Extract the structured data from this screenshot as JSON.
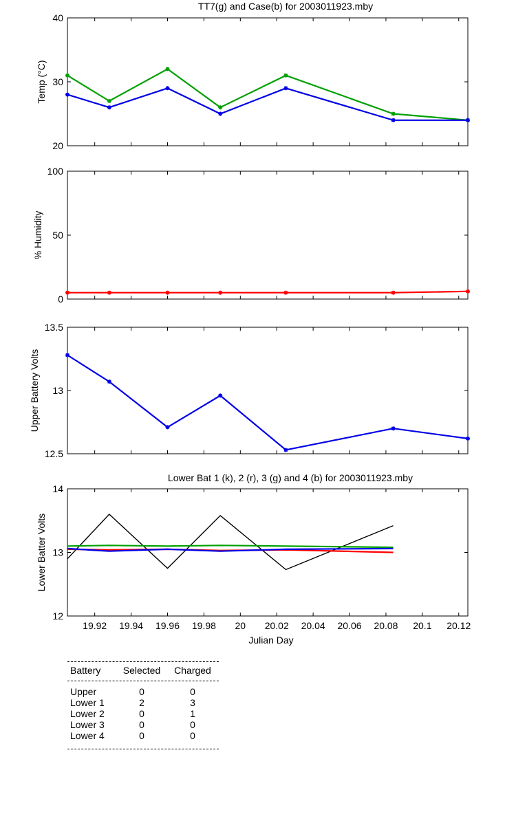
{
  "chart_data": [
    {
      "type": "line",
      "title": "TT7(g) and Case(b) for 2003011923.mby",
      "ylabel": "Temp  (°C)",
      "xlabel": "",
      "xlim": [
        19.905,
        20.125
      ],
      "ylim": [
        20,
        40
      ],
      "yticks": [
        20,
        30,
        40
      ],
      "series": [
        {
          "name": "TT7",
          "color": "#00a000",
          "x": [
            19.905,
            19.928,
            19.96,
            19.989,
            20.025,
            20.084,
            20.125
          ],
          "y": [
            31,
            27,
            32,
            26,
            31,
            25,
            24
          ]
        },
        {
          "name": "Case",
          "color": "#0000e6",
          "x": [
            19.905,
            19.928,
            19.96,
            19.989,
            20.025,
            20.084,
            20.125
          ],
          "y": [
            28,
            26,
            29,
            25,
            29,
            24,
            24
          ]
        }
      ]
    },
    {
      "type": "line",
      "title": "",
      "ylabel": "% Humidity",
      "xlabel": "",
      "xlim": [
        19.905,
        20.125
      ],
      "ylim": [
        0,
        100
      ],
      "yticks": [
        0,
        50,
        100
      ],
      "series": [
        {
          "color": "#ff0000",
          "x": [
            19.905,
            19.928,
            19.96,
            19.989,
            20.025,
            20.084,
            20.125
          ],
          "y": [
            5,
            5,
            5,
            5,
            5,
            5,
            6
          ]
        }
      ]
    },
    {
      "type": "line",
      "title": "",
      "ylabel": "Upper Battery Volts",
      "xlabel": "",
      "xlim": [
        19.905,
        20.125
      ],
      "ylim": [
        12.5,
        13.5
      ],
      "yticks": [
        12.5,
        13,
        13.5
      ],
      "series": [
        {
          "color": "#0000e6",
          "x": [
            19.905,
            19.928,
            19.96,
            19.989,
            20.025,
            20.084,
            20.125
          ],
          "y": [
            13.28,
            13.07,
            12.71,
            12.96,
            12.53,
            12.7,
            12.62
          ]
        }
      ]
    },
    {
      "type": "line",
      "title": "Lower Bat 1 (k), 2 (r), 3 (g) and 4 (b) for 2003011923.mby",
      "ylabel": "Lower Batter Volts",
      "xlabel": "Julian Day",
      "xlim": [
        19.905,
        20.125
      ],
      "ylim": [
        12,
        14
      ],
      "yticks": [
        12,
        13,
        14
      ],
      "xticks": [
        "19.92",
        "19.94",
        "19.96",
        "19.98",
        "20",
        "20.02",
        "20.04",
        "20.06",
        "20.08",
        "20.1",
        "20.12"
      ],
      "series": [
        {
          "name": "1",
          "color": "#000000",
          "x": [
            19.905,
            19.928,
            19.96,
            19.989,
            20.025,
            20.084
          ],
          "y": [
            12.9,
            13.6,
            12.75,
            13.58,
            12.73,
            13.42
          ]
        },
        {
          "name": "2",
          "color": "#ff0000",
          "x": [
            19.905,
            19.928,
            19.96,
            19.989,
            20.025,
            20.084
          ],
          "y": [
            13.05,
            13.04,
            13.05,
            13.03,
            13.04,
            13.0
          ]
        },
        {
          "name": "3",
          "color": "#00a000",
          "x": [
            19.905,
            19.928,
            19.96,
            19.989,
            20.025,
            20.084
          ],
          "y": [
            13.1,
            13.11,
            13.1,
            13.11,
            13.1,
            13.08
          ]
        },
        {
          "name": "4",
          "color": "#0000e6",
          "x": [
            19.905,
            19.928,
            19.96,
            19.989,
            20.025,
            20.084
          ],
          "y": [
            13.06,
            13.02,
            13.05,
            13.02,
            13.05,
            13.06
          ]
        }
      ]
    }
  ],
  "battery_table": {
    "headers": [
      "Battery",
      "Selected",
      "Charged"
    ],
    "rows": [
      [
        "Upper",
        "0",
        "0"
      ],
      [
        "Lower 1",
        "2",
        "3"
      ],
      [
        "Lower 2",
        "0",
        "1"
      ],
      [
        "Lower 3",
        "0",
        "0"
      ],
      [
        "Lower 4",
        "0",
        "0"
      ]
    ]
  }
}
